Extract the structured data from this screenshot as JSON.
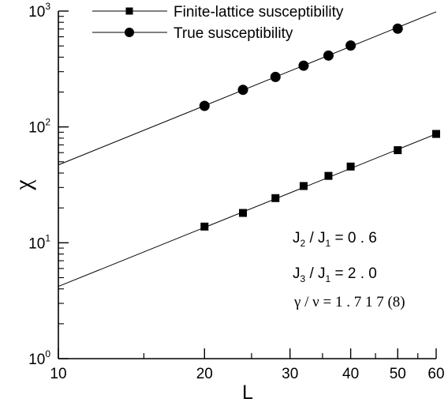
{
  "chart_data": {
    "type": "line",
    "scale": {
      "x": "log",
      "y": "log"
    },
    "xlim": [
      10,
      60
    ],
    "ylim": [
      1,
      1000
    ],
    "xlabel": "L",
    "ylabel": "χ",
    "x_ticks": [
      {
        "value": 10,
        "label": "10"
      },
      {
        "value": 20,
        "label": "20"
      },
      {
        "value": 30,
        "label": "30"
      },
      {
        "value": 40,
        "label": "40"
      },
      {
        "value": 50,
        "label": "50"
      },
      {
        "value": 60,
        "label": "60"
      }
    ],
    "y_ticks": [
      {
        "value": 1,
        "base": "10",
        "exp": "0"
      },
      {
        "value": 10,
        "base": "10",
        "exp": "1"
      },
      {
        "value": 100,
        "base": "10",
        "exp": "2"
      },
      {
        "value": 1000,
        "base": "10",
        "exp": "3"
      }
    ],
    "grid": false,
    "legend_position": "top-left",
    "series": [
      {
        "name": "Finite-lattice susceptibility",
        "marker": "square",
        "x": [
          20,
          24,
          28,
          32,
          36,
          40,
          50,
          60
        ],
        "y": [
          13.8,
          18.1,
          24.3,
          30.9,
          37.8,
          45.5,
          63.0,
          87.0
        ],
        "fit": {
          "x": [
            10,
            60
          ],
          "y": [
            4.2,
            87.0
          ]
        }
      },
      {
        "name": "True susceptibility",
        "marker": "circle",
        "x": [
          20,
          24,
          28,
          32,
          36,
          40,
          50
        ],
        "y": [
          152,
          209,
          270,
          338,
          413,
          504,
          705
        ],
        "fit": {
          "x": [
            10,
            60
          ],
          "y": [
            47,
            985
          ]
        }
      }
    ],
    "annotations": {
      "ratio1": {
        "a": "J",
        "a_sub": "2",
        "op": " / ",
        "b": "J",
        "b_sub": "1",
        "value": " = 0 . 6"
      },
      "ratio2": {
        "a": "J",
        "a_sub": "3",
        "op": " / ",
        "b": "J",
        "b_sub": "1",
        "value": " = 2 . 0"
      },
      "exponent": {
        "text": "γ / ν =  1 . 7 1 7 (8)"
      }
    }
  }
}
